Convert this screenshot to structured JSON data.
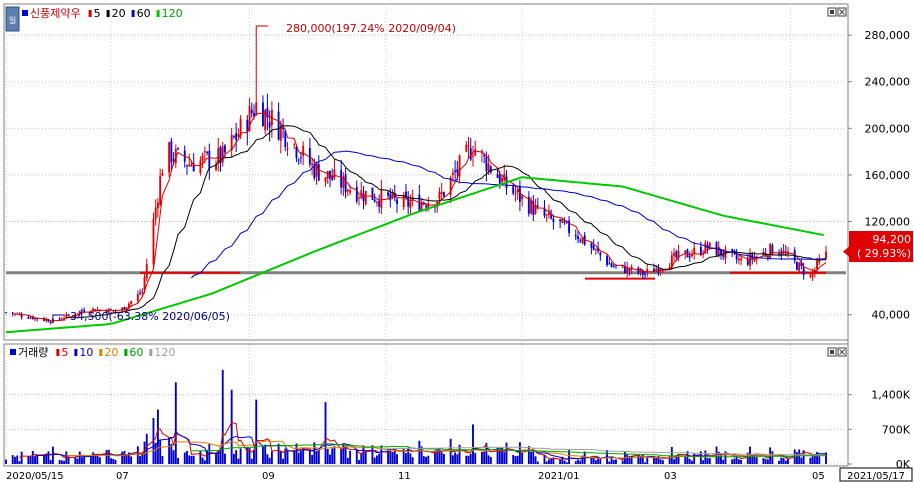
{
  "price_panel": {
    "legend": {
      "name": "신풍제약우",
      "ma_items": [
        {
          "label": "5",
          "color": "#d40000"
        },
        {
          "label": "20",
          "color": "#000000"
        },
        {
          "label": "60",
          "color": "#0000c8"
        },
        {
          "label": "120",
          "color": "#00c800"
        }
      ]
    },
    "high_annotation": "280,000(197.24% 2020/09/04)",
    "low_annotation": "34,500(-63.38% 2020/06/05)",
    "current_price": "94,200",
    "current_change": "( 29.93%)",
    "y_ticks": [
      "280,000",
      "240,000",
      "200,000",
      "160,000",
      "120,000",
      "40,000"
    ],
    "colors": {
      "up": "#e00000",
      "down": "#0000e0",
      "ma5": "#d40000",
      "ma20": "#000000",
      "ma60": "#0000c8",
      "ma120": "#00c800",
      "hline": "#808080",
      "support": "#e00000"
    }
  },
  "volume_panel": {
    "legend": {
      "label": "거래량",
      "ma_items": [
        {
          "label": "5",
          "color": "#d40000"
        },
        {
          "label": "10",
          "color": "#0000c8"
        },
        {
          "label": "20",
          "color": "#e08000"
        },
        {
          "label": "60",
          "color": "#00a000"
        },
        {
          "label": "120",
          "color": "#a0a0a0"
        }
      ]
    },
    "y_ticks": [
      "1,400K",
      "700K",
      "0K"
    ]
  },
  "x_axis": {
    "ticks": [
      "2020/05/15",
      "07",
      "09",
      "11",
      "2021/01",
      "03",
      "05"
    ],
    "last_date": "2021/05/17"
  },
  "chart_data": {
    "type": "candlestick",
    "period": [
      "2020/05/15",
      "2021/05/17"
    ],
    "price_ylim": [
      20000,
      305000
    ],
    "volume_ylim": [
      0,
      2100000
    ],
    "price_path": [
      {
        "date": "2020/05/15",
        "close": 42000
      },
      {
        "date": "2020/06/05",
        "close": 34500
      },
      {
        "date": "2020/06/20",
        "close": 45000
      },
      {
        "date": "2020/07/05",
        "close": 43000
      },
      {
        "date": "2020/07/15",
        "close": 60000
      },
      {
        "date": "2020/07/25",
        "close": 180000
      },
      {
        "date": "2020/08/05",
        "close": 170000
      },
      {
        "date": "2020/08/20",
        "close": 175000
      },
      {
        "date": "2020/09/04",
        "close": 220000
      },
      {
        "date": "2020/09/15",
        "close": 200000
      },
      {
        "date": "2020/09/30",
        "close": 165000
      },
      {
        "date": "2020/10/20",
        "close": 145000
      },
      {
        "date": "2020/11/10",
        "close": 135000
      },
      {
        "date": "2020/11/25",
        "close": 140000
      },
      {
        "date": "2020/12/10",
        "close": 185000
      },
      {
        "date": "2020/12/25",
        "close": 150000
      },
      {
        "date": "2021/01/10",
        "close": 125000
      },
      {
        "date": "2021/01/25",
        "close": 110000
      },
      {
        "date": "2021/02/10",
        "close": 82000
      },
      {
        "date": "2021/02/25",
        "close": 75000
      },
      {
        "date": "2021/03/10",
        "close": 88000
      },
      {
        "date": "2021/03/25",
        "close": 98000
      },
      {
        "date": "2021/04/10",
        "close": 85000
      },
      {
        "date": "2021/04/25",
        "close": 98000
      },
      {
        "date": "2021/05/10",
        "close": 72500
      },
      {
        "date": "2021/05/17",
        "close": 94200
      }
    ],
    "extremes": {
      "high": {
        "date": "2020/09/04",
        "value": 280000,
        "pct": 197.24
      },
      "low": {
        "date": "2020/06/05",
        "value": 34500,
        "pct": -63.38
      }
    },
    "last": {
      "date": "2021/05/17",
      "close": 94200,
      "change_pct": 29.93
    },
    "ma120_path": [
      {
        "date": "2020/05/15",
        "value": 25000
      },
      {
        "date": "2020/07/01",
        "value": 32000
      },
      {
        "date": "2020/08/15",
        "value": 58000
      },
      {
        "date": "2020/10/01",
        "value": 95000
      },
      {
        "date": "2020/11/15",
        "value": 128000
      },
      {
        "date": "2021/01/01",
        "value": 158000
      },
      {
        "date": "2021/02/15",
        "value": 150000
      },
      {
        "date": "2021/04/01",
        "value": 125000
      },
      {
        "date": "2021/05/17",
        "value": 108000
      }
    ],
    "reference_line": {
      "value": 76000
    },
    "volume_spikes": [
      {
        "date": "2020/07/22",
        "value": 1100000
      },
      {
        "date": "2020/07/30",
        "value": 1650000
      },
      {
        "date": "2020/08/20",
        "value": 1900000
      },
      {
        "date": "2020/08/24",
        "value": 1500000
      },
      {
        "date": "2020/09/04",
        "value": 1300000
      },
      {
        "date": "2020/10/05",
        "value": 1250000
      },
      {
        "date": "2020/12/10",
        "value": 800000
      }
    ]
  }
}
